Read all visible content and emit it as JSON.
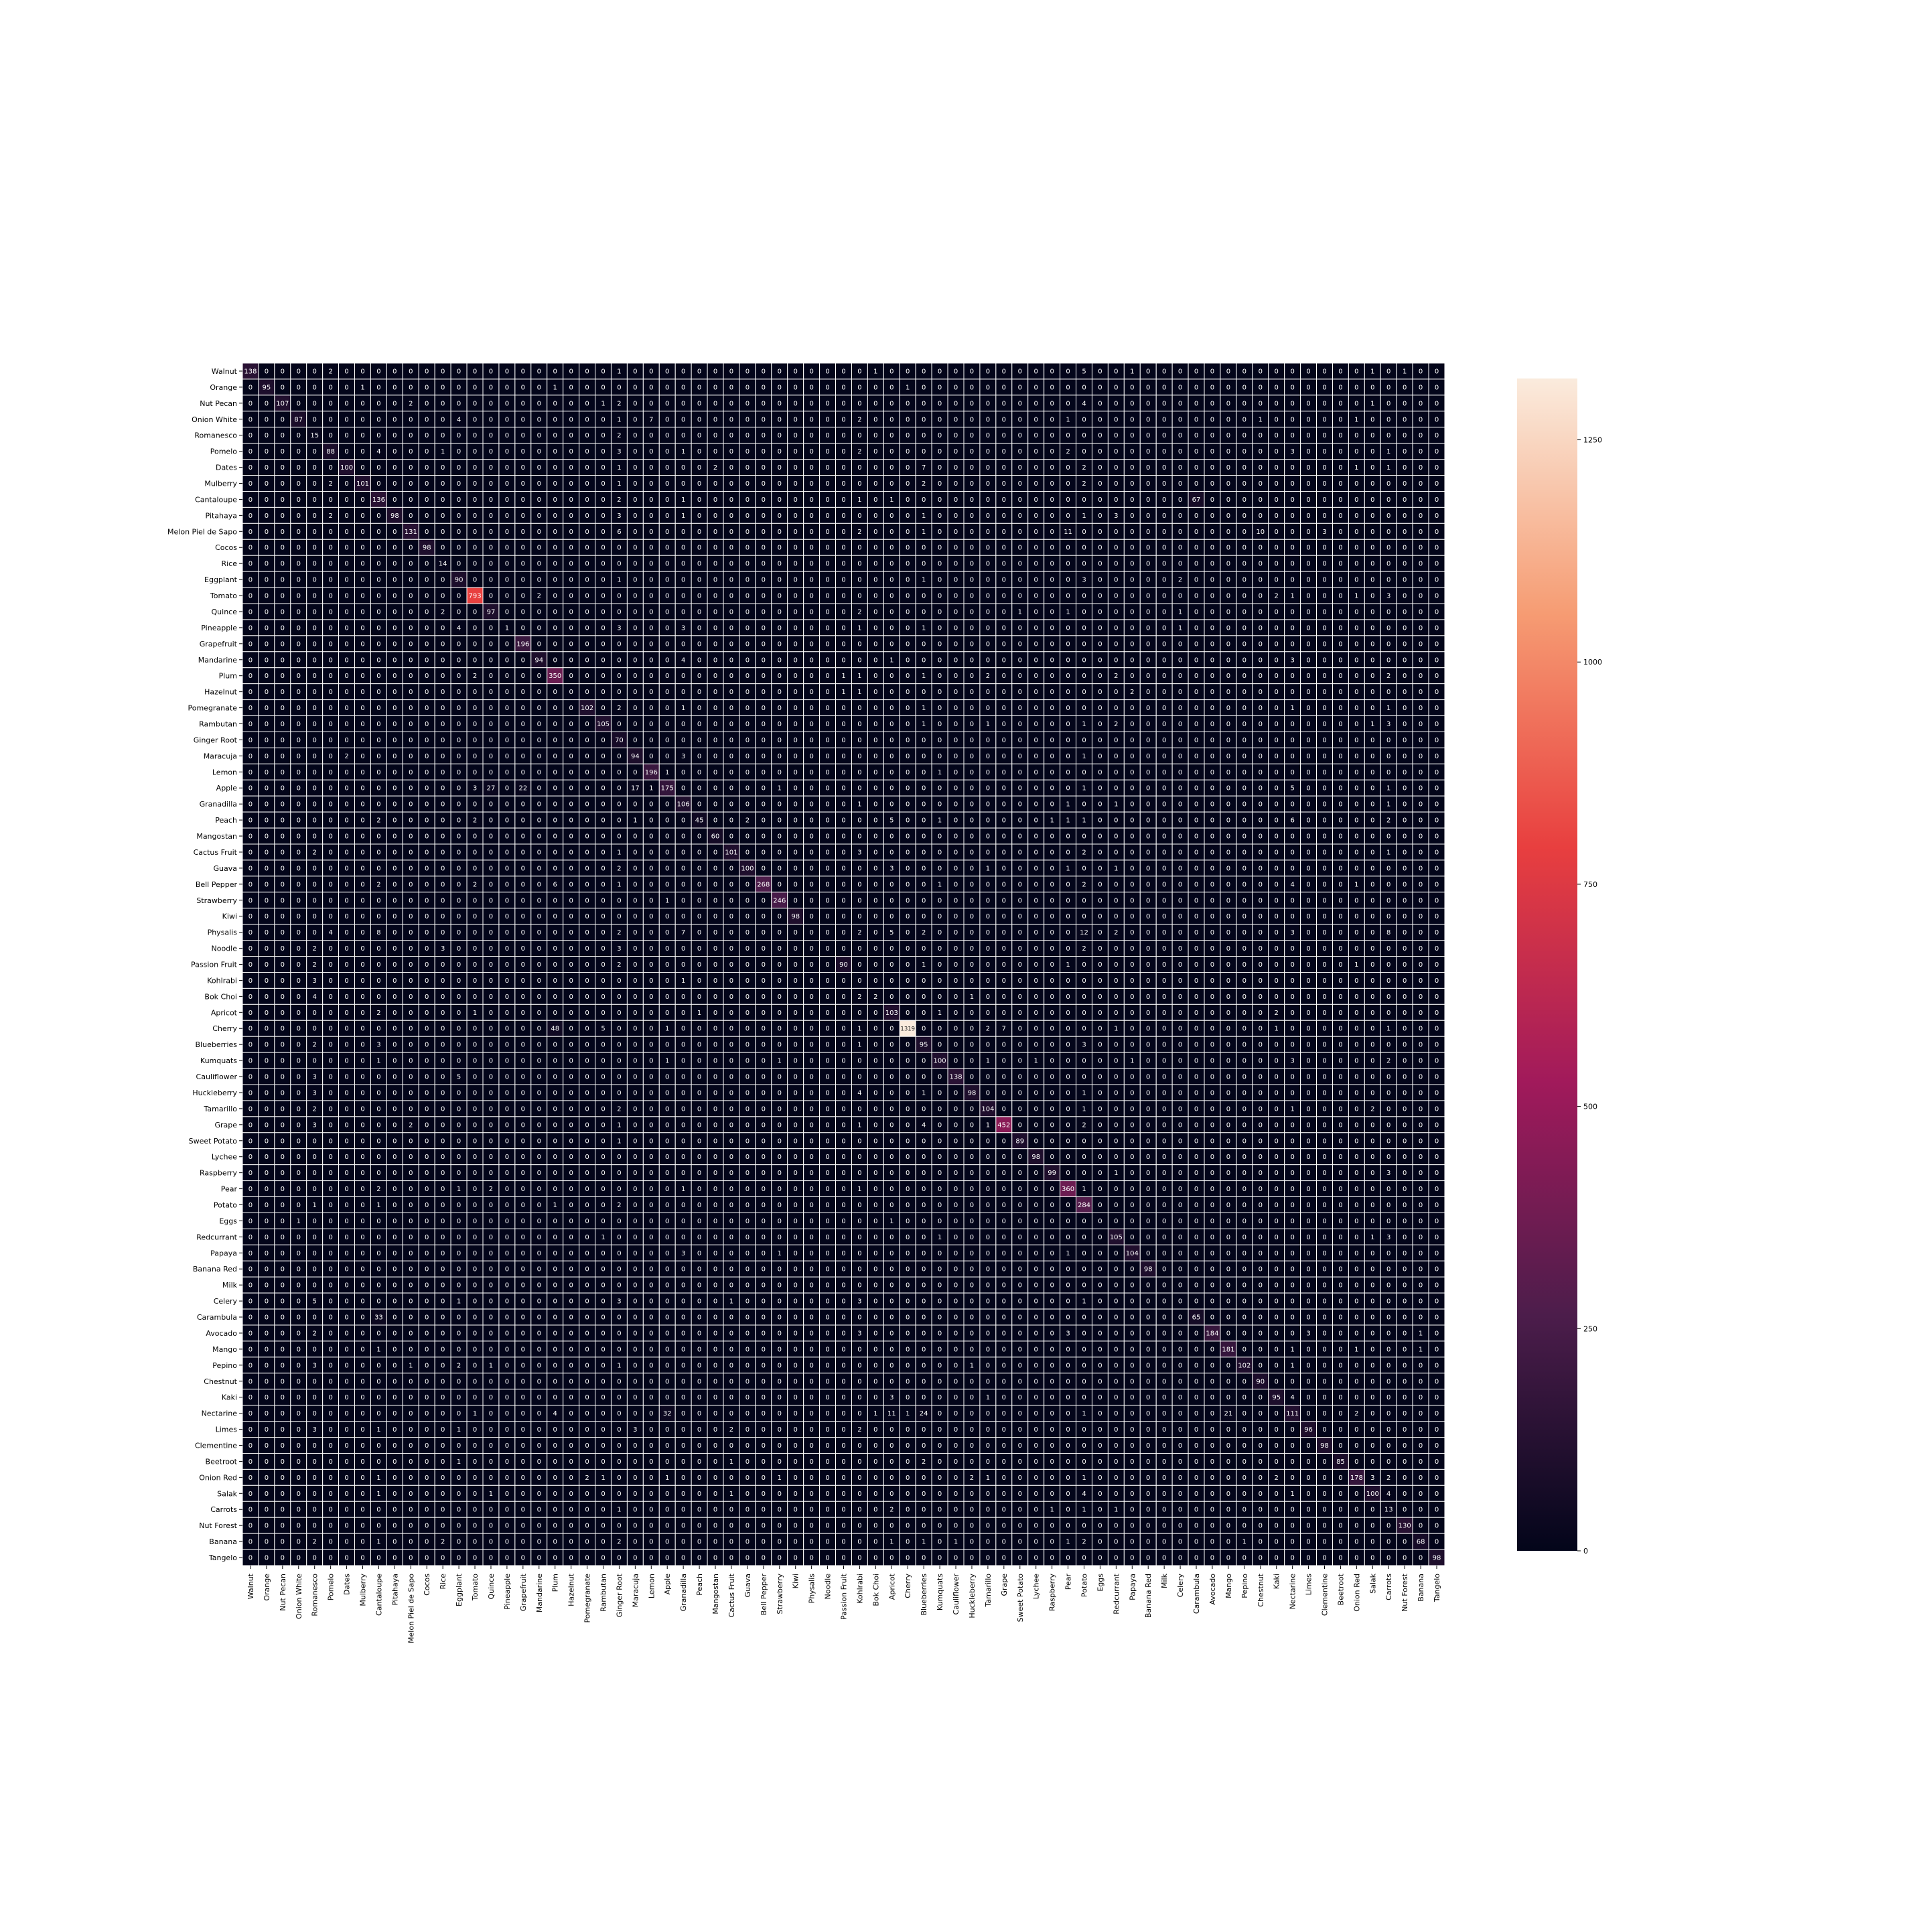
{
  "chart_data": {
    "type": "heatmap",
    "title": "",
    "xlabel": "",
    "ylabel": "",
    "categories": [
      "Walnut",
      "Orange",
      "Nut Pecan",
      "Onion White",
      "Romanesco",
      "Pomelo",
      "Dates",
      "Mulberry",
      "Cantaloupe",
      "Pitahaya",
      "Melon Piel de Sapo",
      "Cocos",
      "Rice",
      "Eggplant",
      "Tomato",
      "Quince",
      "Pineapple",
      "Grapefruit",
      "Mandarine",
      "Plum",
      "Hazelnut",
      "Pomegranate",
      "Rambutan",
      "Ginger Root",
      "Maracuja",
      "Lemon",
      "Apple",
      "Granadilla",
      "Peach",
      "Mangostan",
      "Cactus Fruit",
      "Guava",
      "Bell Pepper",
      "Strawberry",
      "Kiwi",
      "Physalis",
      "Noodle",
      "Passion Fruit",
      "Kohlrabi",
      "Bok Choi",
      "Apricot",
      "Cherry",
      "Blueberries",
      "Kumquats",
      "Cauliflower",
      "Huckleberry",
      "Tamarillo",
      "Grape",
      "Sweet Potato",
      "Lychee",
      "Raspberry",
      "Pear",
      "Potato",
      "Eggs",
      "Redcurrant",
      "Papaya",
      "Banana Red",
      "Milk",
      "Celery",
      "Carambula",
      "Avocado",
      "Mango",
      "Pepino",
      "Chestnut",
      "Kaki",
      "Nectarine",
      "Limes",
      "Clementine",
      "Beetroot",
      "Onion Red",
      "Salak",
      "Carrots",
      "Nut Forest",
      "Banana",
      "Tangelo"
    ],
    "diagonal": [
      138,
      95,
      107,
      87,
      15,
      88,
      100,
      101,
      136,
      98,
      131,
      98,
      14,
      90,
      793,
      97,
      1,
      196,
      94,
      350,
      0,
      102,
      105,
      70,
      94,
      196,
      175,
      106,
      45,
      60,
      101,
      100,
      268,
      246,
      98,
      0,
      0,
      90,
      106,
      2,
      103,
      1319,
      95,
      100,
      138,
      98,
      104,
      452,
      89,
      98,
      99,
      360,
      284,
      0,
      105,
      104,
      98,
      0,
      0,
      65,
      184,
      181,
      102,
      90,
      95,
      111,
      96,
      98,
      85,
      178,
      100,
      13,
      130,
      68,
      98
    ],
    "off_diagonal": [
      [
        0,
        5,
        2
      ],
      [
        0,
        23,
        1
      ],
      [
        0,
        39,
        1
      ],
      [
        0,
        52,
        5
      ],
      [
        0,
        55,
        1
      ],
      [
        0,
        70,
        1
      ],
      [
        0,
        72,
        1
      ],
      [
        1,
        7,
        1
      ],
      [
        1,
        19,
        1
      ],
      [
        1,
        41,
        1
      ],
      [
        2,
        10,
        2
      ],
      [
        2,
        22,
        1
      ],
      [
        2,
        23,
        2
      ],
      [
        2,
        52,
        4
      ],
      [
        2,
        70,
        1
      ],
      [
        3,
        13,
        4
      ],
      [
        3,
        23,
        1
      ],
      [
        3,
        25,
        7
      ],
      [
        3,
        38,
        2
      ],
      [
        3,
        51,
        1
      ],
      [
        3,
        63,
        1
      ],
      [
        3,
        69,
        1
      ],
      [
        4,
        23,
        2
      ],
      [
        5,
        8,
        4
      ],
      [
        5,
        12,
        1
      ],
      [
        5,
        23,
        3
      ],
      [
        5,
        27,
        1
      ],
      [
        5,
        38,
        2
      ],
      [
        5,
        51,
        2
      ],
      [
        5,
        65,
        3
      ],
      [
        5,
        71,
        1
      ],
      [
        6,
        23,
        1
      ],
      [
        6,
        29,
        2
      ],
      [
        6,
        42,
        7
      ],
      [
        6,
        52,
        2
      ],
      [
        6,
        69,
        1
      ],
      [
        6,
        71,
        1
      ],
      [
        7,
        5,
        2
      ],
      [
        7,
        23,
        1
      ],
      [
        7,
        42,
        2
      ],
      [
        7,
        52,
        2
      ],
      [
        8,
        23,
        2
      ],
      [
        8,
        27,
        1
      ],
      [
        8,
        38,
        1
      ],
      [
        8,
        40,
        1
      ],
      [
        8,
        59,
        67
      ],
      [
        9,
        5,
        2
      ],
      [
        9,
        23,
        3
      ],
      [
        9,
        27,
        1
      ],
      [
        9,
        42,
        1
      ],
      [
        9,
        52,
        1
      ],
      [
        9,
        54,
        3
      ],
      [
        10,
        23,
        6
      ],
      [
        10,
        38,
        2
      ],
      [
        10,
        42,
        1
      ],
      [
        10,
        51,
        11
      ],
      [
        10,
        63,
        10
      ],
      [
        10,
        67,
        3
      ],
      [
        13,
        23,
        1
      ],
      [
        13,
        42,
        1
      ],
      [
        13,
        52,
        3
      ],
      [
        13,
        58,
        2
      ],
      [
        14,
        18,
        2
      ],
      [
        14,
        64,
        2
      ],
      [
        14,
        65,
        1
      ],
      [
        14,
        69,
        1
      ],
      [
        14,
        71,
        3
      ],
      [
        15,
        12,
        2
      ],
      [
        15,
        38,
        2
      ],
      [
        15,
        48,
        1
      ],
      [
        15,
        51,
        1
      ],
      [
        15,
        58,
        1
      ],
      [
        16,
        13,
        4
      ],
      [
        16,
        23,
        3
      ],
      [
        16,
        27,
        3
      ],
      [
        16,
        38,
        1
      ],
      [
        16,
        42,
        1
      ],
      [
        16,
        58,
        1
      ],
      [
        18,
        27,
        4
      ],
      [
        18,
        40,
        1
      ],
      [
        18,
        65,
        3
      ],
      [
        19,
        14,
        2
      ],
      [
        19,
        37,
        1
      ],
      [
        19,
        38,
        1
      ],
      [
        19,
        42,
        1
      ],
      [
        19,
        46,
        2
      ],
      [
        19,
        54,
        2
      ],
      [
        19,
        71,
        2
      ],
      [
        20,
        37,
        1
      ],
      [
        20,
        38,
        1
      ],
      [
        20,
        55,
        2
      ],
      [
        21,
        23,
        2
      ],
      [
        21,
        27,
        1
      ],
      [
        21,
        42,
        1
      ],
      [
        21,
        65,
        1
      ],
      [
        21,
        71,
        1
      ],
      [
        22,
        42,
        1
      ],
      [
        22,
        46,
        1
      ],
      [
        22,
        52,
        1
      ],
      [
        22,
        54,
        2
      ],
      [
        22,
        70,
        1
      ],
      [
        22,
        71,
        3
      ],
      [
        24,
        6,
        2
      ],
      [
        24,
        27,
        3
      ],
      [
        24,
        52,
        1
      ],
      [
        25,
        26,
        1
      ],
      [
        25,
        43,
        1
      ],
      [
        26,
        14,
        3
      ],
      [
        26,
        15,
        27
      ],
      [
        26,
        17,
        22
      ],
      [
        26,
        24,
        17
      ],
      [
        26,
        25,
        1
      ],
      [
        26,
        33,
        1
      ],
      [
        26,
        52,
        1
      ],
      [
        26,
        65,
        5
      ],
      [
        26,
        71,
        1
      ],
      [
        27,
        38,
        1
      ],
      [
        27,
        51,
        1
      ],
      [
        27,
        54,
        1
      ],
      [
        27,
        71,
        1
      ],
      [
        28,
        8,
        2
      ],
      [
        28,
        14,
        2
      ],
      [
        28,
        24,
        1
      ],
      [
        28,
        31,
        2
      ],
      [
        28,
        40,
        5
      ],
      [
        28,
        43,
        1
      ],
      [
        28,
        50,
        1
      ],
      [
        28,
        51,
        1
      ],
      [
        28,
        52,
        1
      ],
      [
        28,
        65,
        6
      ],
      [
        28,
        71,
        2
      ],
      [
        30,
        4,
        2
      ],
      [
        30,
        23,
        1
      ],
      [
        30,
        38,
        3
      ],
      [
        30,
        52,
        2
      ],
      [
        30,
        71,
        1
      ],
      [
        31,
        23,
        2
      ],
      [
        31,
        40,
        3
      ],
      [
        31,
        46,
        1
      ],
      [
        31,
        51,
        1
      ],
      [
        31,
        54,
        1
      ],
      [
        32,
        8,
        2
      ],
      [
        32,
        14,
        2
      ],
      [
        32,
        19,
        6
      ],
      [
        32,
        23,
        1
      ],
      [
        32,
        43,
        1
      ],
      [
        32,
        52,
        2
      ],
      [
        32,
        65,
        4
      ],
      [
        32,
        69,
        1
      ],
      [
        33,
        26,
        1
      ],
      [
        35,
        5,
        4
      ],
      [
        35,
        8,
        8
      ],
      [
        35,
        23,
        2
      ],
      [
        35,
        27,
        7
      ],
      [
        35,
        38,
        2
      ],
      [
        35,
        40,
        5
      ],
      [
        35,
        42,
        2
      ],
      [
        35,
        52,
        12
      ],
      [
        35,
        54,
        2
      ],
      [
        35,
        65,
        3
      ],
      [
        35,
        71,
        8
      ],
      [
        36,
        4,
        2
      ],
      [
        36,
        12,
        3
      ],
      [
        36,
        23,
        3
      ],
      [
        36,
        52,
        2
      ],
      [
        37,
        4,
        2
      ],
      [
        37,
        23,
        2
      ],
      [
        37,
        42,
        1
      ],
      [
        37,
        51,
        1
      ],
      [
        37,
        69,
        1
      ],
      [
        38,
        4,
        3
      ],
      [
        38,
        27,
        1
      ],
      [
        38,
        38,
        0
      ],
      [
        39,
        4,
        4
      ],
      [
        39,
        38,
        2
      ],
      [
        39,
        45,
        1
      ],
      [
        40,
        8,
        2
      ],
      [
        40,
        14,
        1
      ],
      [
        40,
        28,
        1
      ],
      [
        40,
        43,
        1
      ],
      [
        40,
        64,
        2
      ],
      [
        41,
        19,
        48
      ],
      [
        41,
        22,
        5
      ],
      [
        41,
        26,
        1
      ],
      [
        41,
        38,
        1
      ],
      [
        41,
        46,
        2
      ],
      [
        41,
        47,
        7
      ],
      [
        41,
        54,
        1
      ],
      [
        41,
        64,
        1
      ],
      [
        41,
        71,
        1
      ],
      [
        42,
        4,
        2
      ],
      [
        42,
        8,
        3
      ],
      [
        42,
        38,
        1
      ],
      [
        42,
        52,
        3
      ],
      [
        43,
        8,
        1
      ],
      [
        43,
        26,
        1
      ],
      [
        43,
        33,
        1
      ],
      [
        43,
        46,
        1
      ],
      [
        43,
        49,
        1
      ],
      [
        43,
        55,
        1
      ],
      [
        43,
        65,
        3
      ],
      [
        43,
        71,
        2
      ],
      [
        44,
        4,
        3
      ],
      [
        44,
        13,
        5
      ],
      [
        45,
        4,
        3
      ],
      [
        45,
        38,
        4
      ],
      [
        45,
        42,
        1
      ],
      [
        45,
        52,
        1
      ],
      [
        46,
        4,
        2
      ],
      [
        46,
        23,
        2
      ],
      [
        46,
        52,
        1
      ],
      [
        46,
        65,
        1
      ],
      [
        46,
        70,
        2
      ],
      [
        47,
        4,
        3
      ],
      [
        47,
        10,
        2
      ],
      [
        47,
        23,
        1
      ],
      [
        47,
        38,
        1
      ],
      [
        47,
        42,
        4
      ],
      [
        47,
        46,
        1
      ],
      [
        47,
        52,
        2
      ],
      [
        48,
        23,
        1
      ],
      [
        50,
        54,
        1
      ],
      [
        50,
        71,
        3
      ],
      [
        51,
        8,
        2
      ],
      [
        51,
        13,
        1
      ],
      [
        51,
        15,
        2
      ],
      [
        51,
        27,
        1
      ],
      [
        51,
        38,
        1
      ],
      [
        51,
        52,
        1
      ],
      [
        52,
        4,
        1
      ],
      [
        52,
        8,
        1
      ],
      [
        52,
        19,
        1
      ],
      [
        52,
        23,
        2
      ],
      [
        53,
        3,
        1
      ],
      [
        53,
        40,
        1
      ],
      [
        54,
        22,
        1
      ],
      [
        54,
        43,
        1
      ],
      [
        54,
        70,
        1
      ],
      [
        54,
        71,
        3
      ],
      [
        55,
        27,
        3
      ],
      [
        55,
        33,
        1
      ],
      [
        55,
        51,
        1
      ],
      [
        58,
        4,
        5
      ],
      [
        58,
        13,
        1
      ],
      [
        58,
        23,
        3
      ],
      [
        58,
        30,
        1
      ],
      [
        58,
        38,
        3
      ],
      [
        58,
        52,
        1
      ],
      [
        59,
        8,
        33
      ],
      [
        60,
        4,
        2
      ],
      [
        60,
        38,
        3
      ],
      [
        60,
        51,
        3
      ],
      [
        60,
        66,
        3
      ],
      [
        60,
        73,
        1
      ],
      [
        61,
        8,
        1
      ],
      [
        61,
        65,
        1
      ],
      [
        61,
        69,
        1
      ],
      [
        61,
        73,
        1
      ],
      [
        62,
        4,
        3
      ],
      [
        62,
        10,
        1
      ],
      [
        62,
        13,
        2
      ],
      [
        62,
        15,
        1
      ],
      [
        62,
        23,
        1
      ],
      [
        62,
        45,
        1
      ],
      [
        62,
        65,
        1
      ],
      [
        64,
        40,
        3
      ],
      [
        64,
        46,
        1
      ],
      [
        64,
        65,
        4
      ],
      [
        65,
        14,
        1
      ],
      [
        65,
        19,
        4
      ],
      [
        65,
        26,
        32
      ],
      [
        65,
        39,
        1
      ],
      [
        65,
        40,
        11
      ],
      [
        65,
        41,
        1
      ],
      [
        65,
        42,
        24
      ],
      [
        65,
        52,
        1
      ],
      [
        65,
        61,
        21
      ],
      [
        65,
        69,
        2
      ],
      [
        66,
        4,
        3
      ],
      [
        66,
        8,
        1
      ],
      [
        66,
        13,
        1
      ],
      [
        66,
        24,
        3
      ],
      [
        66,
        30,
        2
      ],
      [
        66,
        38,
        2
      ],
      [
        68,
        13,
        1
      ],
      [
        68,
        30,
        1
      ],
      [
        68,
        42,
        2
      ],
      [
        69,
        8,
        1
      ],
      [
        69,
        21,
        2
      ],
      [
        69,
        22,
        1
      ],
      [
        69,
        26,
        1
      ],
      [
        69,
        33,
        1
      ],
      [
        69,
        45,
        2
      ],
      [
        69,
        46,
        1
      ],
      [
        69,
        52,
        1
      ],
      [
        69,
        64,
        2
      ],
      [
        69,
        70,
        3
      ],
      [
        69,
        71,
        2
      ],
      [
        70,
        8,
        1
      ],
      [
        70,
        15,
        1
      ],
      [
        70,
        30,
        1
      ],
      [
        70,
        52,
        4
      ],
      [
        70,
        65,
        1
      ],
      [
        70,
        71,
        4
      ],
      [
        71,
        23,
        1
      ],
      [
        71,
        40,
        2
      ],
      [
        71,
        50,
        1
      ],
      [
        71,
        52,
        1
      ],
      [
        71,
        54,
        1
      ],
      [
        72,
        71,
        0
      ],
      [
        73,
        4,
        2
      ],
      [
        73,
        8,
        1
      ],
      [
        73,
        12,
        2
      ],
      [
        73,
        23,
        2
      ],
      [
        73,
        40,
        1
      ],
      [
        73,
        42,
        1
      ],
      [
        73,
        44,
        1
      ],
      [
        73,
        51,
        1
      ],
      [
        73,
        52,
        2
      ],
      [
        73,
        62,
        1
      ]
    ],
    "colorbar": {
      "min": 0,
      "max": 1319,
      "ticks": [
        0,
        250,
        500,
        750,
        1000,
        1250
      ],
      "colors": [
        "#03051a",
        "#4c1d4b",
        "#a11a5b",
        "#e83f3f",
        "#f69c73",
        "#faebdd"
      ]
    },
    "grid": true,
    "annotations": "cell counts"
  }
}
